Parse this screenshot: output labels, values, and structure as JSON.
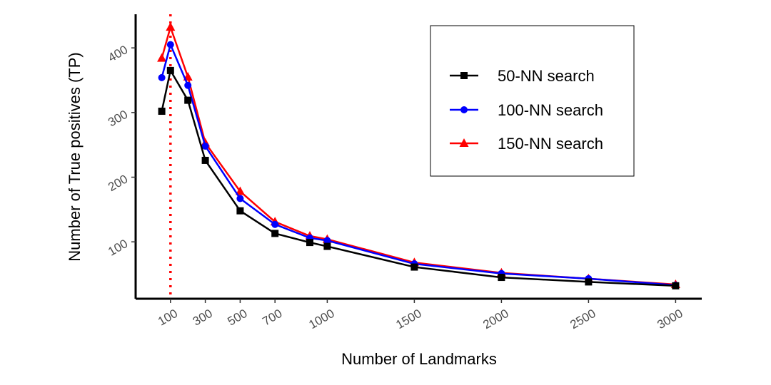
{
  "chart_data": {
    "type": "line",
    "xlabel": "Number of Landmarks",
    "ylabel": "Number of True positives (TP)",
    "x_ticks": [
      100,
      300,
      500,
      700,
      1000,
      1500,
      2000,
      2500,
      3000
    ],
    "y_ticks": [
      100,
      200,
      300,
      400
    ],
    "xlim": [
      -100,
      3150
    ],
    "ylim": [
      12,
      452
    ],
    "grid": false,
    "legend_position": "top-right",
    "reference_line": {
      "x": 100,
      "style": "dotted",
      "color": "#ff0000"
    },
    "series": [
      {
        "name": "50-NN search",
        "color": "#000000",
        "marker": "square",
        "x": [
          50,
          100,
          200,
          300,
          500,
          700,
          900,
          1000,
          1500,
          2000,
          2500,
          3000
        ],
        "y": [
          302,
          365,
          319,
          226,
          148,
          113,
          99,
          93,
          61,
          45,
          38,
          32
        ]
      },
      {
        "name": "100-NN search",
        "color": "#0000ff",
        "marker": "circle",
        "x": [
          50,
          100,
          200,
          300,
          500,
          700,
          900,
          1000,
          1500,
          2000,
          2500,
          3000
        ],
        "y": [
          354,
          405,
          342,
          248,
          167,
          127,
          106,
          102,
          66,
          51,
          43,
          33
        ]
      },
      {
        "name": "150-NN search",
        "color": "#ff0000",
        "marker": "triangle",
        "x": [
          50,
          100,
          200,
          300,
          500,
          700,
          900,
          1000,
          1500,
          2000,
          2500,
          3000
        ],
        "y": [
          384,
          432,
          355,
          253,
          178,
          131,
          109,
          104,
          68,
          52,
          43,
          34
        ]
      }
    ]
  }
}
